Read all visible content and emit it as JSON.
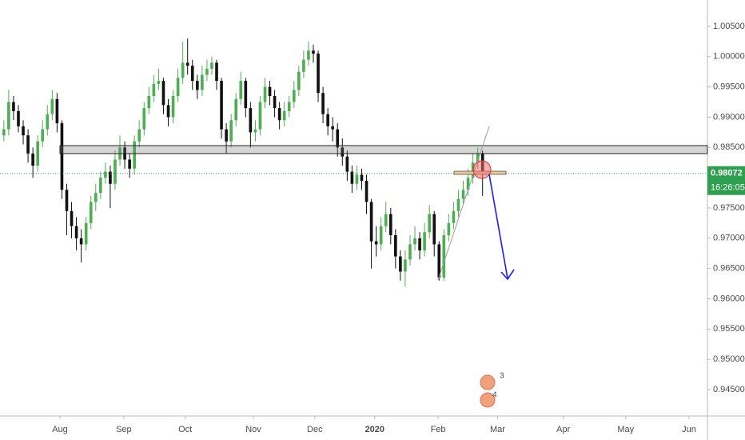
{
  "chart_data": {
    "type": "candlestick",
    "xlim": [
      -0.8,
      145.5
    ],
    "xticks": [
      {
        "value": 11.6,
        "label": "Aug"
      },
      {
        "value": 24.8,
        "label": "Sep"
      },
      {
        "value": 37.5,
        "label": "Oct"
      },
      {
        "value": 51.6,
        "label": "Nov"
      },
      {
        "value": 64.3,
        "label": "Dec"
      },
      {
        "value": 76.7,
        "label": "2020"
      },
      {
        "value": 89.8,
        "label": "Feb"
      },
      {
        "value": 102.1,
        "label": "Mar"
      },
      {
        "value": 115.7,
        "label": "Apr"
      },
      {
        "value": 128.6,
        "label": "May"
      },
      {
        "value": 141.7,
        "label": "Jun"
      }
    ],
    "ylim": [
      0.94064,
      1.00936
    ],
    "yticks": [
      {
        "value": 0.945,
        "label": "0.94500"
      },
      {
        "value": 0.95,
        "label": "0.95000"
      },
      {
        "value": 0.955,
        "label": "0.95500"
      },
      {
        "value": 0.96,
        "label": "0.96000"
      },
      {
        "value": 0.965,
        "label": "0.96500"
      },
      {
        "value": 0.97,
        "label": "0.97000"
      },
      {
        "value": 0.975,
        "label": "0.97500"
      },
      {
        "value": 0.98,
        "label": "0.98000"
      },
      {
        "value": 0.985,
        "label": "0.98500"
      },
      {
        "value": 0.99,
        "label": "0.99000"
      },
      {
        "value": 0.995,
        "label": "0.99500"
      },
      {
        "value": 1.0,
        "label": "1.00000"
      },
      {
        "value": 1.005,
        "label": "1.00500"
      }
    ],
    "up_color": "#4caf50",
    "down_color": "#111111",
    "open": [
      0.987,
      0.988,
      0.9925,
      0.991,
      0.9885,
      0.987,
      0.984,
      0.982,
      0.986,
      0.988,
      0.9905,
      0.993,
      0.989,
      0.978,
      0.9745,
      0.972,
      0.97,
      0.969,
      0.9725,
      0.976,
      0.9775,
      0.98,
      0.981,
      0.979,
      0.983,
      0.985,
      0.983,
      0.9815,
      0.986,
      0.988,
      0.9915,
      0.9935,
      0.9955,
      0.996,
      0.992,
      0.99,
      0.9935,
      0.9965,
      0.999,
      0.9985,
      0.996,
      0.9945,
      0.997,
      0.998,
      0.999,
      0.996,
      0.988,
      0.986,
      0.9895,
      0.993,
      0.996,
      0.9915,
      0.9875,
      0.988,
      0.9925,
      0.995,
      0.9935,
      0.9915,
      0.9895,
      0.991,
      0.9925,
      0.9945,
      0.9975,
      0.9995,
      1.001,
      1.0005,
      0.994,
      0.9905,
      0.9885,
      0.988,
      0.985,
      0.9835,
      0.981,
      0.979,
      0.9805,
      0.9795,
      0.976,
      0.9695,
      0.969,
      0.972,
      0.974,
      0.9705,
      0.967,
      0.9645,
      0.9665,
      0.969,
      0.97,
      0.968,
      0.971,
      0.974,
      0.969,
      0.9635,
      0.9705,
      0.9725,
      0.9745,
      0.9765,
      0.978,
      0.98,
      0.9825,
      0.984
    ],
    "high": [
      0.9895,
      0.9945,
      0.9935,
      0.992,
      0.9895,
      0.988,
      0.985,
      0.987,
      0.9895,
      0.992,
      0.9945,
      0.994,
      0.9895,
      0.979,
      0.976,
      0.9735,
      0.9715,
      0.9735,
      0.977,
      0.979,
      0.981,
      0.9825,
      0.982,
      0.9845,
      0.987,
      0.986,
      0.984,
      0.987,
      0.9895,
      0.9925,
      0.995,
      0.997,
      0.998,
      0.9965,
      0.993,
      0.9945,
      0.998,
      1.0025,
      1.003,
      0.9995,
      0.997,
      0.9985,
      0.9995,
      1.0,
      0.9995,
      0.9965,
      0.989,
      0.9905,
      0.994,
      0.9975,
      0.9965,
      0.9925,
      0.9895,
      0.9935,
      0.9965,
      0.996,
      0.9945,
      0.9925,
      0.9925,
      0.9935,
      0.996,
      0.9985,
      1.001,
      1.0025,
      1.002,
      1.001,
      0.995,
      0.9915,
      0.99,
      0.989,
      0.9865,
      0.9845,
      0.982,
      0.982,
      0.9815,
      0.9805,
      0.9765,
      0.972,
      0.9735,
      0.976,
      0.975,
      0.9715,
      0.968,
      0.968,
      0.9705,
      0.972,
      0.971,
      0.9725,
      0.9755,
      0.9745,
      0.9695,
      0.9715,
      0.974,
      0.976,
      0.978,
      0.9795,
      0.9815,
      0.984,
      0.985,
      0.9845
    ],
    "low": [
      0.986,
      0.987,
      0.9895,
      0.9875,
      0.9855,
      0.9825,
      0.98,
      0.981,
      0.985,
      0.987,
      0.9895,
      0.9875,
      0.9765,
      0.9705,
      0.97,
      0.968,
      0.966,
      0.968,
      0.9715,
      0.9745,
      0.9765,
      0.979,
      0.975,
      0.978,
      0.982,
      0.9815,
      0.98,
      0.9805,
      0.985,
      0.987,
      0.9905,
      0.9925,
      0.9945,
      0.9905,
      0.9885,
      0.989,
      0.9925,
      0.9955,
      0.997,
      0.9945,
      0.993,
      0.9935,
      0.996,
      0.997,
      0.9945,
      0.9865,
      0.984,
      0.985,
      0.9885,
      0.992,
      0.99,
      0.985,
      0.986,
      0.987,
      0.9915,
      0.992,
      0.99,
      0.988,
      0.9885,
      0.99,
      0.9915,
      0.9935,
      0.9965,
      0.9985,
      0.999,
      0.9925,
      0.989,
      0.987,
      0.986,
      0.9835,
      0.982,
      0.9795,
      0.9775,
      0.978,
      0.978,
      0.974,
      0.965,
      0.967,
      0.968,
      0.971,
      0.969,
      0.965,
      0.963,
      0.962,
      0.9655,
      0.968,
      0.9665,
      0.967,
      0.97,
      0.967,
      0.963,
      0.963,
      0.9695,
      0.9715,
      0.9735,
      0.9755,
      0.977,
      0.979,
      0.9815,
      0.977
    ],
    "close": [
      0.988,
      0.9925,
      0.991,
      0.9885,
      0.987,
      0.984,
      0.982,
      0.986,
      0.988,
      0.9905,
      0.993,
      0.989,
      0.978,
      0.9745,
      0.972,
      0.97,
      0.969,
      0.9725,
      0.976,
      0.9775,
      0.98,
      0.981,
      0.979,
      0.983,
      0.985,
      0.983,
      0.9815,
      0.986,
      0.988,
      0.9915,
      0.9935,
      0.9955,
      0.996,
      0.992,
      0.99,
      0.9935,
      0.9965,
      0.999,
      0.9985,
      0.996,
      0.9945,
      0.997,
      0.998,
      0.999,
      0.996,
      0.988,
      0.986,
      0.9895,
      0.993,
      0.996,
      0.9915,
      0.9875,
      0.988,
      0.9925,
      0.995,
      0.9935,
      0.9915,
      0.9895,
      0.991,
      0.9925,
      0.9945,
      0.9975,
      0.9995,
      1.001,
      1.0005,
      0.994,
      0.9905,
      0.9885,
      0.988,
      0.985,
      0.9835,
      0.981,
      0.979,
      0.9805,
      0.9795,
      0.976,
      0.9695,
      0.969,
      0.972,
      0.974,
      0.9705,
      0.967,
      0.9645,
      0.9665,
      0.969,
      0.97,
      0.968,
      0.971,
      0.974,
      0.969,
      0.9635,
      0.9705,
      0.9725,
      0.9745,
      0.9765,
      0.978,
      0.98,
      0.9825,
      0.984,
      0.9807
    ],
    "last_price": {
      "value": 0.98072,
      "label": "0.98072"
    },
    "countdown": "16:26:05",
    "event_counts": [
      "3",
      "4"
    ]
  }
}
